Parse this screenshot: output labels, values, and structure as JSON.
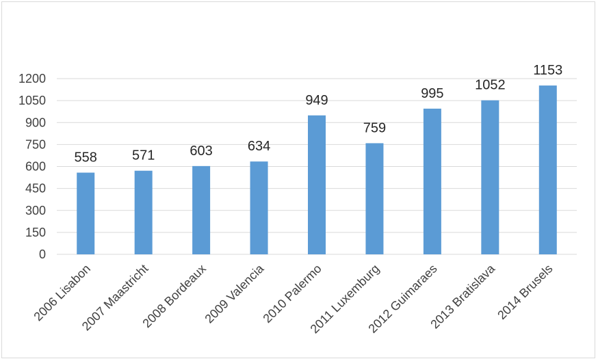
{
  "chart_data": {
    "type": "bar",
    "title": "",
    "xlabel": "",
    "ylabel": "",
    "categories": [
      "2006  Lisabon",
      "2007  Maastricht",
      "2008  Bordeaux",
      "2009  Valencia",
      "2010  Palermo",
      "2011 Luxemburg",
      "2012 Guimaraes",
      "2013 Bratislava",
      "2014 Brusels"
    ],
    "values": [
      558,
      571,
      603,
      634,
      949,
      759,
      995,
      1052,
      1153
    ],
    "ylim": [
      0,
      1200
    ],
    "yticks": [
      0,
      150,
      300,
      450,
      600,
      750,
      900,
      1050,
      1200
    ],
    "grid": true,
    "legend": "none",
    "bar_color": "#5b9bd5",
    "grid_color": "#d9d9d9"
  }
}
